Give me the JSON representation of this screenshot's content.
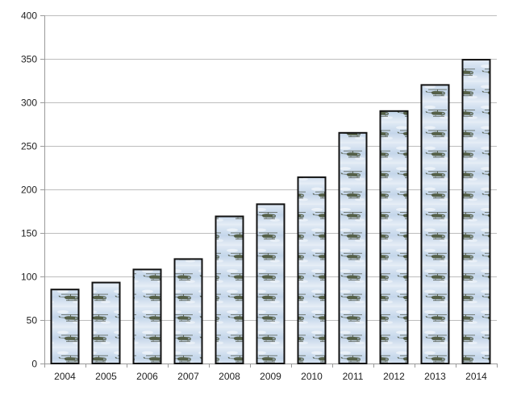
{
  "chart_data": {
    "type": "bar",
    "title": "",
    "xlabel": "",
    "ylabel": "",
    "categories": [
      "2004",
      "2005",
      "2006",
      "2007",
      "2008",
      "2009",
      "2010",
      "2011",
      "2012",
      "2013",
      "2014"
    ],
    "values": [
      85,
      93,
      108,
      120,
      169,
      183,
      214,
      265,
      290,
      320,
      349
    ],
    "ylim": [
      0,
      400
    ],
    "yticks": [
      0,
      50,
      100,
      150,
      200,
      250,
      300,
      350,
      400
    ],
    "grid": true,
    "legend": "none",
    "bar_fill": "pictograph-helicopter",
    "colors": {
      "sky_light": "#dfe9f4",
      "sky_mid": "#b9cde3",
      "helicopter": "#556048",
      "outline": "#111111",
      "grid": "#bdbdbd"
    }
  }
}
